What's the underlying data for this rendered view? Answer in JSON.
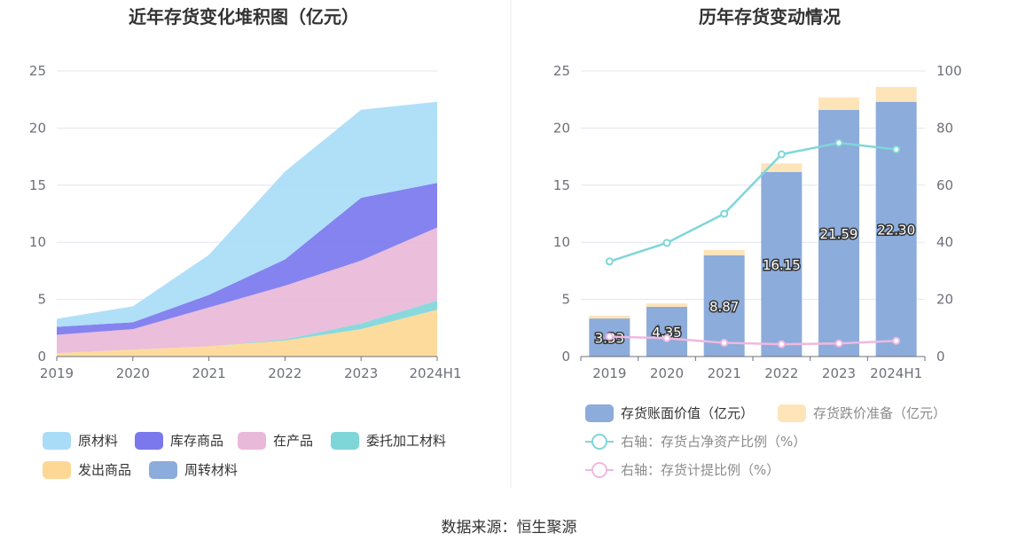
{
  "source": "数据来源：恒生聚源",
  "colors": {
    "raw_material": "#a9dcf7",
    "inventory_goods": "#7b78ee",
    "wip": "#e9b9d9",
    "consigned": "#7fd6d9",
    "shipped": "#fdd895",
    "turnover": "#8cacdb",
    "book_value": "#8cacdb",
    "impairment": "#fde4b9",
    "ratio_line": "#7fd6d9",
    "provision_line": "#f0b8e0"
  },
  "chart_data": [
    {
      "type": "area",
      "title": "近年存货变化堆积图（亿元）",
      "categories": [
        "2019",
        "2020",
        "2021",
        "2022",
        "2023",
        "2024H1"
      ],
      "ylim": [
        0,
        25
      ],
      "yticks": [
        "0",
        "5",
        "10",
        "15",
        "20",
        "25"
      ],
      "series": [
        {
          "name": "发出商品",
          "values": [
            0.3,
            0.6,
            0.9,
            1.4,
            2.4,
            4.1
          ]
        },
        {
          "name": "周转材料",
          "values": [
            0.0,
            0.0,
            0.0,
            0.0,
            0.0,
            0.0
          ]
        },
        {
          "name": "委托加工材料",
          "values": [
            0.0,
            0.0,
            0.0,
            0.1,
            0.5,
            0.8
          ]
        },
        {
          "name": "在产品",
          "values": [
            1.6,
            1.8,
            3.4,
            4.7,
            5.5,
            6.4
          ]
        },
        {
          "name": "库存商品",
          "values": [
            0.7,
            0.6,
            1.1,
            2.3,
            5.5,
            3.9
          ]
        },
        {
          "name": "原材料",
          "values": [
            0.7,
            1.4,
            3.5,
            7.7,
            7.7,
            7.1
          ]
        }
      ],
      "legend": [
        "原材料",
        "库存商品",
        "在产品",
        "委托加工材料",
        "发出商品",
        "周转材料"
      ]
    },
    {
      "type": "bar",
      "title": "历年存货变动情况",
      "categories": [
        "2019",
        "2020",
        "2021",
        "2022",
        "2023",
        "2024H1"
      ],
      "ylim": [
        0,
        25
      ],
      "yticks": [
        "0",
        "5",
        "10",
        "15",
        "20",
        "25"
      ],
      "y2lim": [
        0,
        100
      ],
      "y2ticks": [
        "0",
        "20",
        "40",
        "60",
        "80",
        "100"
      ],
      "series": [
        {
          "name": "存货账面价值（亿元）",
          "values": [
            3.33,
            4.35,
            8.87,
            16.15,
            21.59,
            22.3
          ],
          "labels": [
            "3.33",
            "4.35",
            "8.87",
            "16.15",
            "21.59",
            "22.30"
          ]
        },
        {
          "name": "存货跌价准备（亿元）",
          "values": [
            0.25,
            0.3,
            0.45,
            0.75,
            1.1,
            1.3
          ]
        }
      ],
      "lines": [
        {
          "name": "右轴：存货占净资产比例（%）",
          "values": [
            33.3,
            39.8,
            50.0,
            70.8,
            74.8,
            72.5
          ]
        },
        {
          "name": "右轴：存货计提比例（%）",
          "values": [
            7.0,
            6.4,
            4.8,
            4.3,
            4.6,
            5.5
          ]
        }
      ]
    }
  ]
}
